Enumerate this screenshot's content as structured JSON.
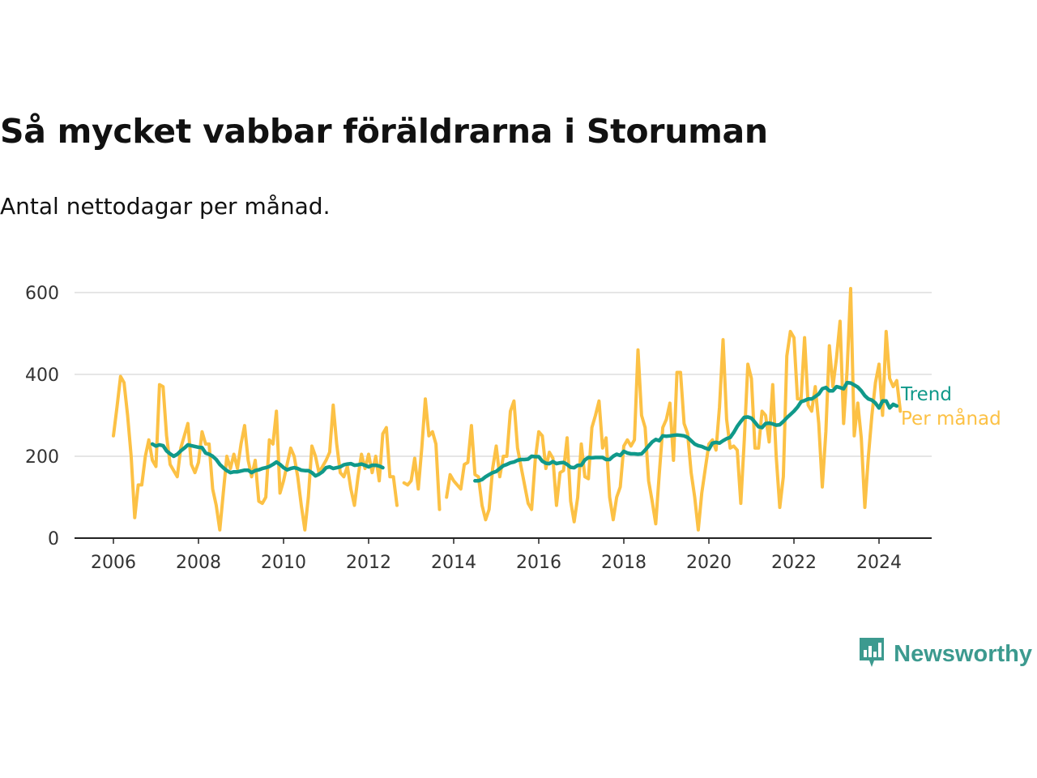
{
  "header": {
    "title": "Så mycket vabbar föräldrarna i Storuman",
    "subtitle": "Antal nettodagar per månad."
  },
  "brand": {
    "name": "Newsworthy",
    "icon": "newsworthy-logo-icon",
    "color": "#3c9a8f"
  },
  "colors": {
    "trend": "#10998a",
    "monthly": "#fcc145",
    "grid": "#dddddd",
    "axis": "#222222"
  },
  "chart_data": {
    "type": "line",
    "title": "Så mycket vabbar föräldrarna i Storuman",
    "subtitle": "Antal nettodagar per månad.",
    "xlabel": "",
    "ylabel": "",
    "xlim": [
      2005.1,
      2025.3
    ],
    "ylim": [
      0,
      600
    ],
    "x_ticks": [
      "2006",
      "2008",
      "2010",
      "2012",
      "2014",
      "2016",
      "2018",
      "2020",
      "2022",
      "2024"
    ],
    "y_ticks": [
      "0",
      "200",
      "400",
      "600"
    ],
    "grid": "horizontal",
    "legend_position": "right, at line ends",
    "series": [
      {
        "name": "Per månad",
        "color": "#fcc145",
        "segments": [
          {
            "start": "2006-01",
            "values": [
              250,
              320,
              395,
              380,
              300,
              200,
              50,
              130,
              130,
              200,
              240,
              190,
              175,
              375,
              370,
              250,
              180,
              165,
              150,
              220,
              250,
              280,
              180,
              160,
              185,
              260,
              230,
              230,
              120,
              80,
              20,
              110,
              200,
              170,
              205,
              170,
              230,
              275,
              190,
              150,
              190,
              90,
              85,
              100,
              240,
              230,
              310,
              110,
              140,
              180,
              220,
              200,
              150,
              80,
              20,
              100,
              225,
              200,
              160,
              175,
              190,
              210,
              325,
              230,
              160,
              150,
              175,
              120,
              80,
              150,
              205,
              170,
              205,
              160,
              200,
              140,
              255,
              270,
              150,
              150,
              80
            ]
          },
          {
            "start": "2012-11",
            "values": [
              135,
              130,
              140,
              195,
              120,
              220,
              340,
              250,
              260,
              230,
              70
            ]
          },
          {
            "start": "2013-11",
            "values": [
              100,
              155,
              140,
              130,
              120,
              180,
              185,
              275,
              155,
              150,
              80,
              45,
              70,
              170,
              225,
              150,
              200,
              200,
              310,
              335,
              220,
              175,
              130,
              85,
              70,
              190,
              260,
              250,
              170,
              210,
              195,
              80,
              160,
              165,
              245,
              90,
              40,
              100,
              230,
              150,
              145,
              270,
              300,
              335,
              220,
              245,
              100,
              45,
              100,
              125,
              225,
              240,
              225,
              240,
              460,
              300,
              270,
              140,
              90,
              35,
              155,
              270,
              290,
              330,
              190,
              405,
              405,
              280,
              255,
              160,
              100,
              20,
              110,
              170,
              230,
              240,
              215,
              320,
              485,
              290,
              220,
              225,
              215,
              85,
              240,
              425,
              390,
              220,
              220,
              310,
              300,
              235,
              375,
              200,
              75,
              150,
              445,
              505,
              490,
              340,
              340,
              490,
              325,
              310,
              370,
              280,
              125,
              260,
              470,
              370,
              440,
              530,
              280,
              410,
              610,
              250,
              330,
              245,
              75,
              200,
              300,
              380,
              425,
              300,
              505,
              390,
              370,
              385,
              310
            ]
          }
        ]
      },
      {
        "name": "Trend",
        "color": "#10998a",
        "segments": [
          {
            "start": "2006-12",
            "values": [
              230,
              225,
              228,
              226,
              213,
              206,
              200,
              205,
              213,
              220,
              228,
              226,
              224,
              222,
              221,
              208,
              205,
              200,
              192,
              180,
              172,
              165,
              160,
              162,
              162,
              164,
              166,
              166,
              160,
              165,
              167,
              170,
              172,
              175,
              180,
              186,
              180,
              172,
              167,
              170,
              172,
              170,
              166,
              165,
              165,
              160,
              152,
              156,
              162,
              172,
              174,
              170,
              172,
              174,
              179,
              181,
              182,
              178,
              179,
              181,
              178,
              174,
              178,
              178,
              176,
              172
            ]
          },
          {
            "start": "2014-07",
            "values": [
              140,
              140,
              143,
              150,
              155,
              160,
              163,
              170,
              177,
              180,
              184,
              186,
              190,
              192,
              192,
              193,
              200,
              199,
              199,
              188,
              183,
              182,
              187,
              182,
              184,
              185,
              180,
              173,
              172,
              178,
              178,
              191,
              197,
              196,
              197,
              197,
              197,
              192,
              192,
              200,
              205,
              202,
              212,
              208,
              206,
              206,
              205,
              206,
              215,
              225,
              235,
              241,
              238,
              250,
              249,
              250,
              251,
              252,
              251,
              250,
              246,
              238,
              230,
              226,
              224,
              220,
              217,
              232,
              234,
              232,
              238,
              243,
              246,
              258,
              273,
              285,
              295,
              296,
              293,
              283,
              272,
              270,
              280,
              281,
              279,
              276,
              277,
              285,
              294,
              302,
              310,
              320,
              333,
              336,
              340,
              340,
              346,
              352,
              365,
              368,
              360,
              360,
              370,
              368,
              365,
              380,
              379,
              374,
              369,
              360,
              348,
              340,
              337,
              330,
              318,
              335,
              335,
              318,
              327,
              323
            ]
          }
        ]
      }
    ]
  }
}
